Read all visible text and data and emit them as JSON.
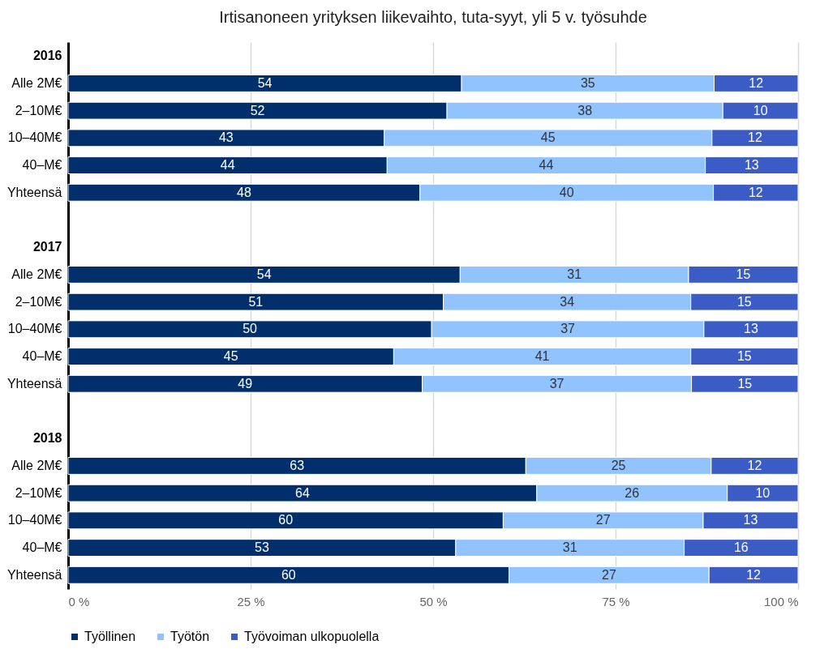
{
  "chart_data": {
    "type": "bar",
    "orientation": "horizontal",
    "stacked": true,
    "title": "Irtisanoneen yrityksen liikevaihto, tuta-syyt, yli 5 v. työsuhde",
    "categories": [
      "2016",
      "Alle 2M€",
      "2–10M€",
      "10–40M€",
      "40–M€",
      "Yhteensä",
      null,
      "2017",
      "Alle 2M€",
      "2–10M€",
      "10–40M€",
      "40–M€",
      "Yhteensä",
      null,
      "2018",
      "Alle 2M€",
      "2–10M€",
      "10–40M€",
      "40–M€",
      "Yhteensä"
    ],
    "series": [
      {
        "name": "Työllinen",
        "color": "#002f6c",
        "values": [
          null,
          53.9,
          51.9,
          43.3,
          43.7,
          48.2,
          null,
          null,
          53.7,
          51.4,
          49.8,
          44.6,
          48.5,
          null,
          null,
          62.7,
          64.2,
          59.6,
          53.1,
          60.4
        ],
        "value_labels": [
          null,
          "54",
          "52",
          "43",
          "44",
          "48",
          null,
          null,
          "54",
          "51",
          "50",
          "45",
          "49",
          null,
          null,
          "63",
          "64",
          "60",
          "53",
          "60"
        ]
      },
      {
        "name": "Työtön",
        "color": "#91c3ff",
        "values": [
          null,
          34.6,
          37.8,
          44.9,
          43.6,
          40.2,
          null,
          null,
          31.3,
          33.9,
          37.3,
          40.7,
          36.9,
          null,
          null,
          25.4,
          26.1,
          27.4,
          31.3,
          27.4
        ],
        "value_labels": [
          null,
          "35",
          "38",
          "45",
          "44",
          "40",
          null,
          null,
          "31",
          "34",
          "37",
          "41",
          "37",
          null,
          null,
          "25",
          "26",
          "27",
          "31",
          "27"
        ]
      },
      {
        "name": "Työvoiman ulkopuolella",
        "color": "#3a5cc4",
        "values": [
          null,
          11.5,
          10.3,
          11.8,
          12.7,
          11.6,
          null,
          null,
          15.0,
          14.7,
          12.9,
          14.7,
          14.6,
          null,
          null,
          11.9,
          9.7,
          13.0,
          15.6,
          12.2
        ],
        "value_labels": [
          null,
          "12",
          "10",
          "12",
          "13",
          "12",
          null,
          null,
          "15",
          "15",
          "13",
          "15",
          "15",
          null,
          null,
          "12",
          "10",
          "13",
          "16",
          "12"
        ]
      }
    ],
    "xlim": [
      0,
      100
    ],
    "xticks": [
      {
        "value": 0,
        "label": "0 %"
      },
      {
        "value": 25,
        "label": "25 %"
      },
      {
        "value": 50,
        "label": "50 %"
      },
      {
        "value": 75,
        "label": "75 %"
      },
      {
        "value": 100,
        "label": "100 %"
      }
    ],
    "grid": "x",
    "legend": "bottom"
  }
}
